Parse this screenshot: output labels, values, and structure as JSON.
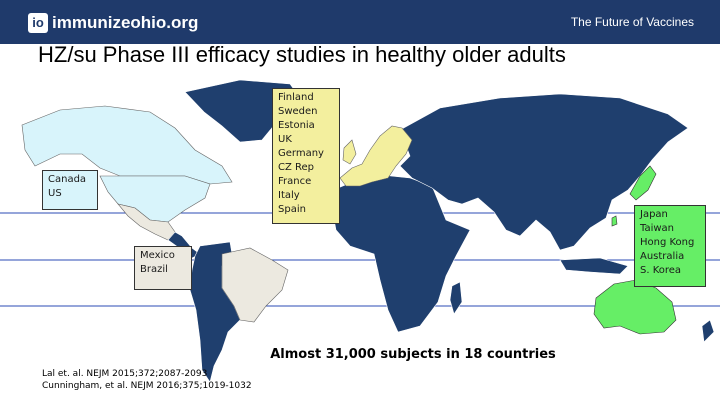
{
  "header": {
    "logo_badge": "io",
    "logo_text": "immunizeohio.org",
    "tagline": "The Future of Vaccines",
    "background_color": "#1f3a6b"
  },
  "slide_title": "HZ/su Phase III efficacy studies in healthy older adults",
  "regions": {
    "north_america": {
      "lines": [
        "Canada",
        "US"
      ],
      "color": "#d8f4fb"
    },
    "latin_america": {
      "lines": [
        "Mexico",
        "Brazil"
      ],
      "color": "#ece9e0"
    },
    "europe": {
      "lines": [
        "Finland",
        "Sweden",
        "Estonia",
        "UK",
        "Germany",
        "CZ Rep",
        "France",
        "Italy",
        "Spain"
      ],
      "color": "#f3ef9e"
    },
    "asia_pacific": {
      "lines": [
        "Japan",
        "Taiwan",
        "Hong Kong",
        "Australia",
        "S. Korea"
      ],
      "color": "#66ee66"
    }
  },
  "other_countries_color": "#1f3f6e",
  "summary": "Almost 31,000 subjects in 18 countries",
  "references": [
    "Lal et. al. NEJM 2015;372;2087-2093",
    "Cunningham, et al. NEJM 2016;375;1019-1032"
  ]
}
